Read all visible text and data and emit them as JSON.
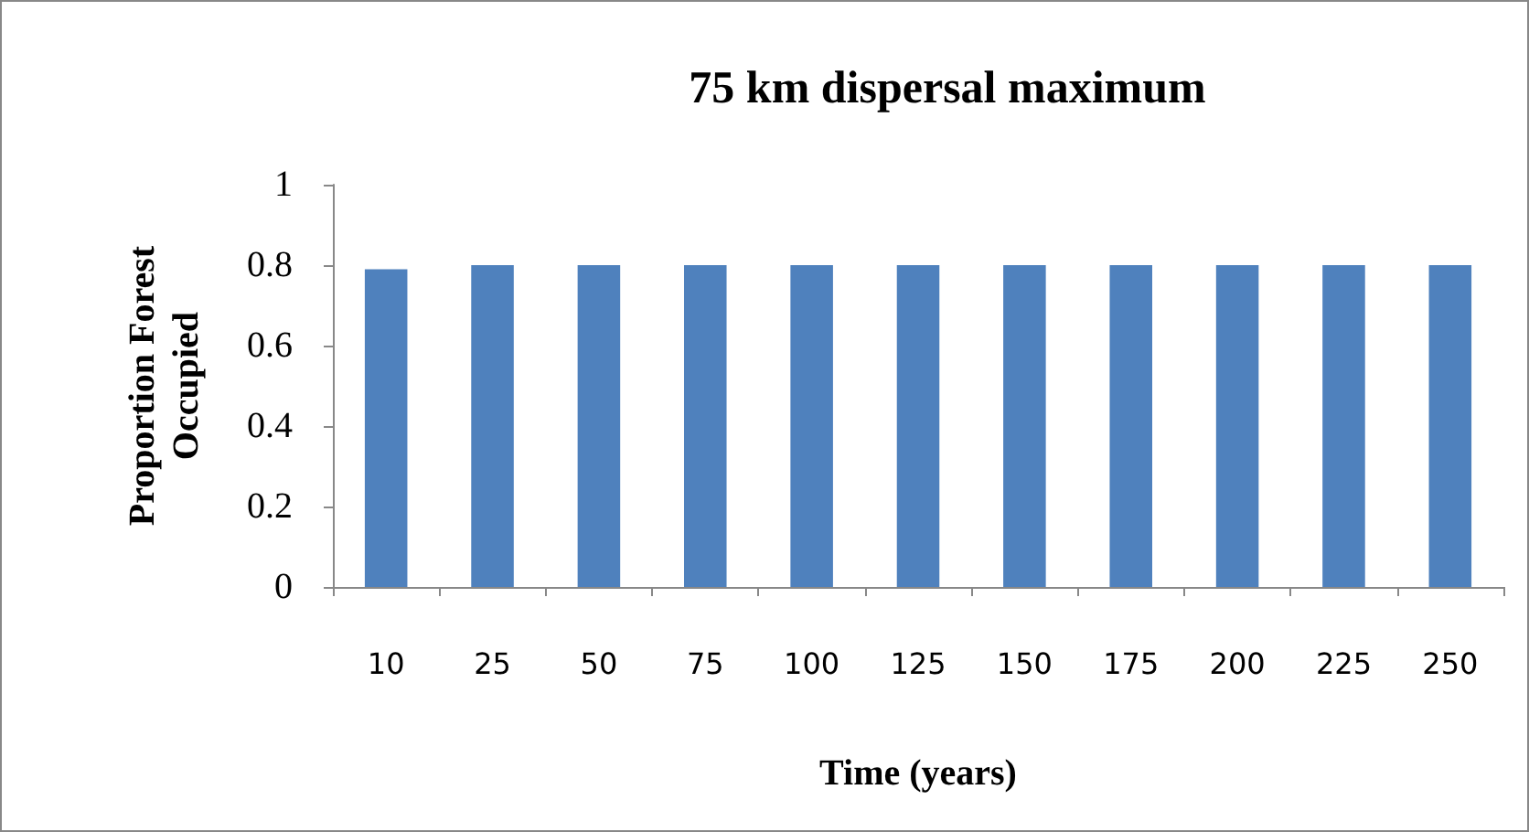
{
  "chart_data": {
    "type": "bar",
    "title": "75 km dispersal maximum",
    "xlabel": "Time (years)",
    "ylabel": "Proportion Forest\nOccupied",
    "categories": [
      "10",
      "25",
      "50",
      "75",
      "100",
      "125",
      "150",
      "175",
      "200",
      "225",
      "250"
    ],
    "values": [
      0.79,
      0.8,
      0.8,
      0.8,
      0.8,
      0.8,
      0.8,
      0.8,
      0.8,
      0.8,
      0.8
    ],
    "color": "#4f81bd",
    "ylim": [
      0,
      1
    ],
    "yticks": [
      0,
      0.2,
      0.4,
      0.6,
      0.8,
      1
    ]
  }
}
